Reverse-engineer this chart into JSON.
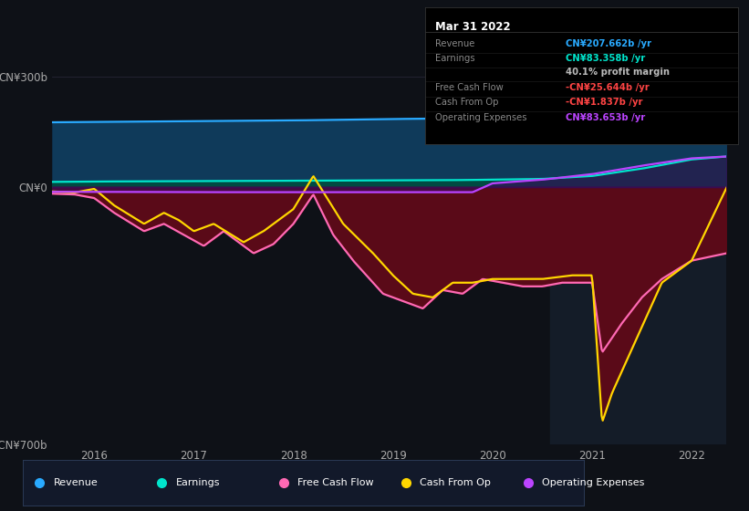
{
  "background_color": "#0e1117",
  "plot_bg_color": "#0e1117",
  "title_box": {
    "date": "Mar 31 2022",
    "rows": [
      {
        "label": "Revenue",
        "value": "CN¥207.662b /yr",
        "value_color": "#29aaff"
      },
      {
        "label": "Earnings",
        "value": "CN¥83.358b /yr",
        "value_color": "#00e5cc"
      },
      {
        "label": "",
        "value": "40.1% profit margin",
        "value_color": "#bbbbbb"
      },
      {
        "label": "Free Cash Flow",
        "value": "-CN¥25.644b /yr",
        "value_color": "#ff4444"
      },
      {
        "label": "Cash From Op",
        "value": "-CN¥1.837b /yr",
        "value_color": "#ff4444"
      },
      {
        "label": "Operating Expenses",
        "value": "CN¥83.653b /yr",
        "value_color": "#bb44ff"
      }
    ]
  },
  "ylim": [
    -700,
    300
  ],
  "yticks": [
    -700,
    0,
    300
  ],
  "ytick_labels": [
    "-CN¥700b",
    "CN¥0",
    "CN¥300b"
  ],
  "xlim_start": 2015.58,
  "xlim_end": 2022.35,
  "xticks": [
    2016,
    2017,
    2018,
    2019,
    2020,
    2021,
    2022
  ],
  "grid_color": "#252535",
  "highlight_start": 2020.58,
  "highlight_end": 2022.35,
  "highlight_color": "#141c28",
  "revenue_color": "#29aaff",
  "revenue_fill": "#0f3a5a",
  "earnings_color": "#00e5cc",
  "earnings_fill": "#004a42",
  "fcf_color": "#ff69b4",
  "cop_color": "#ffd700",
  "dark_red_fill": "#5a0a18",
  "opex_color": "#bb44ff",
  "opex_fill": "#3a0a5a",
  "legend_bg": "#12192a",
  "legend_border": "#2a3a55",
  "legend": [
    {
      "label": "Revenue",
      "color": "#29aaff"
    },
    {
      "label": "Earnings",
      "color": "#00e5cc"
    },
    {
      "label": "Free Cash Flow",
      "color": "#ff69b4"
    },
    {
      "label": "Cash From Op",
      "color": "#ffd700"
    },
    {
      "label": "Operating Expenses",
      "color": "#bb44ff"
    }
  ]
}
